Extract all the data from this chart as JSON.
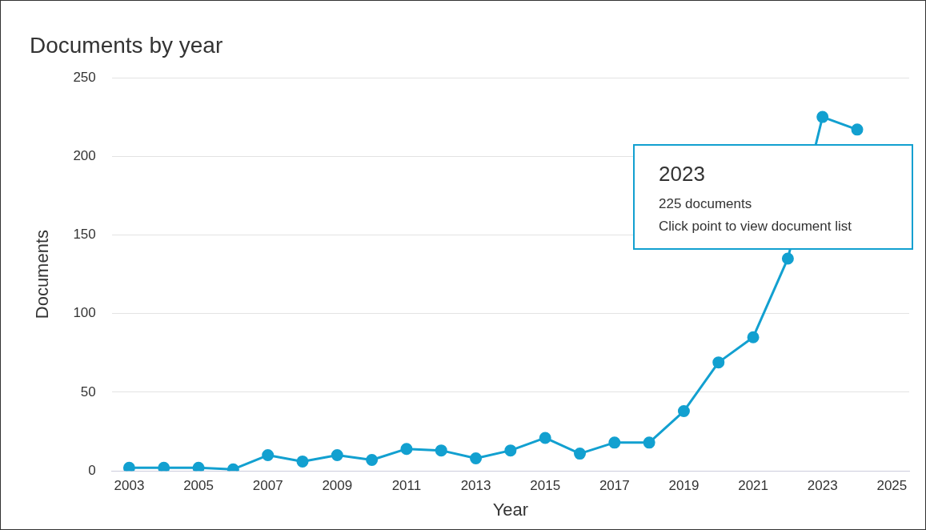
{
  "chart_data": {
    "type": "line",
    "title": "Documents by year",
    "xlabel": "Year",
    "ylabel": "Documents",
    "x": [
      2003,
      2004,
      2005,
      2006,
      2007,
      2008,
      2009,
      2010,
      2011,
      2012,
      2013,
      2014,
      2015,
      2016,
      2017,
      2018,
      2019,
      2020,
      2021,
      2022,
      2023,
      2024
    ],
    "series": [
      {
        "color": "#12a0d0",
        "values": [
          2,
          2,
          2,
          1,
          10,
          6,
          10,
          7,
          14,
          13,
          8,
          13,
          21,
          11,
          18,
          18,
          38,
          69,
          85,
          135,
          225,
          217
        ]
      }
    ],
    "xlim": [
      2002.5,
      2025.5
    ],
    "xticks": [
      2003,
      2005,
      2007,
      2009,
      2011,
      2013,
      2015,
      2017,
      2019,
      2021,
      2023,
      2025
    ],
    "ylim": [
      0,
      250
    ],
    "yticks": [
      0,
      50,
      100,
      150,
      200,
      250
    ],
    "grid": "y",
    "legend": false,
    "marker": "circle",
    "line_style": "solid",
    "annotations": [
      "2023",
      "225 documents",
      "Click point to view document list"
    ]
  }
}
